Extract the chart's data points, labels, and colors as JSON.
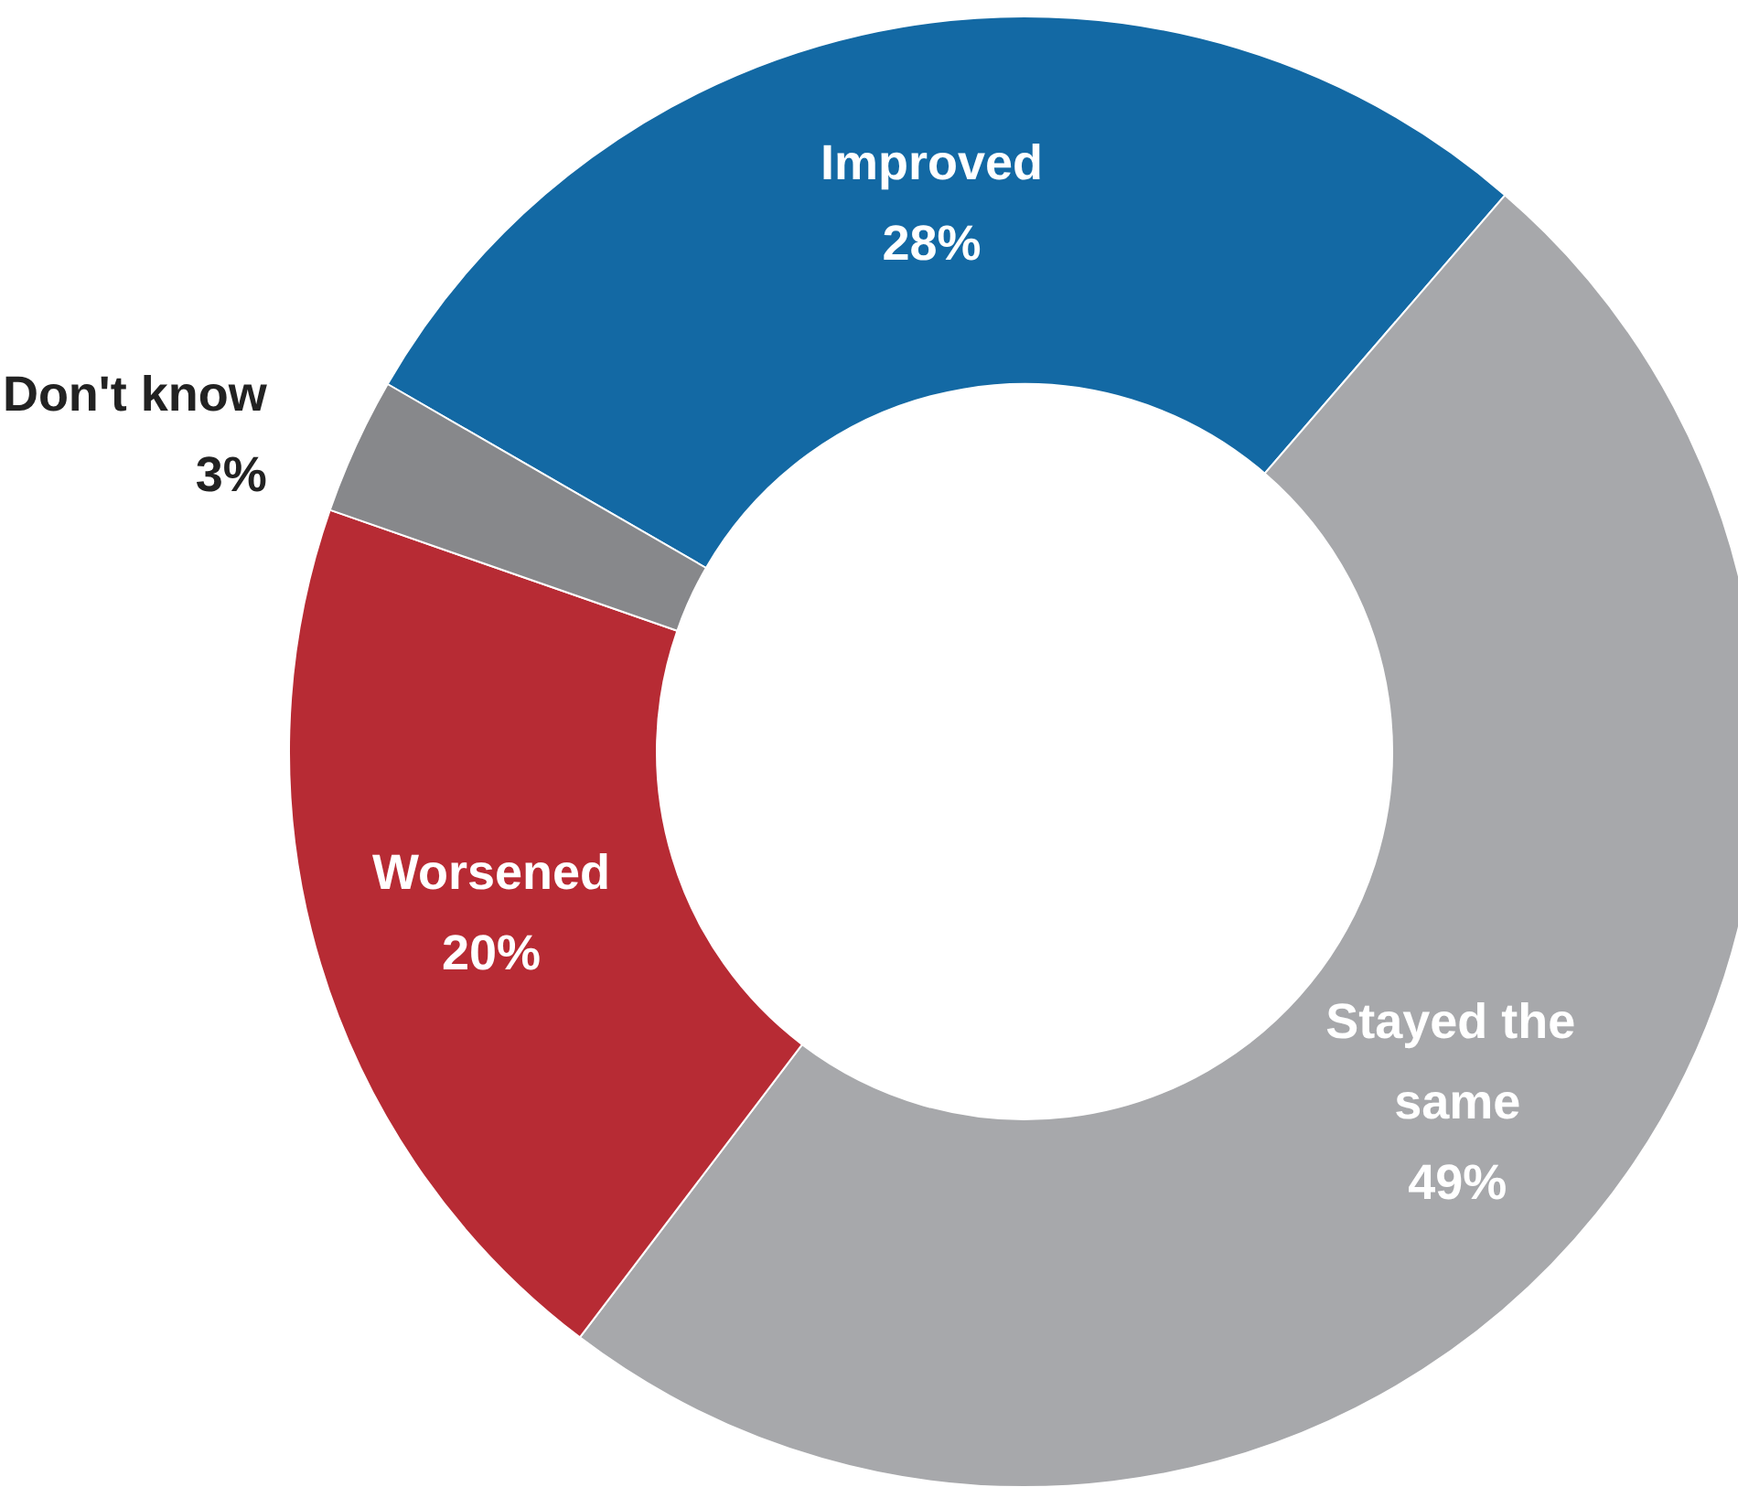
{
  "chart_data": {
    "type": "donut",
    "categories": [
      "Improved",
      "Stayed the same",
      "Worsened",
      "Don't know"
    ],
    "values": [
      28,
      49,
      20,
      3
    ],
    "colors": [
      "#1369a4",
      "#a7a8ab",
      "#b72b34",
      "#87888b"
    ],
    "value_labels": [
      "28%",
      "49%",
      "20%",
      "3%"
    ],
    "legend": false
  }
}
